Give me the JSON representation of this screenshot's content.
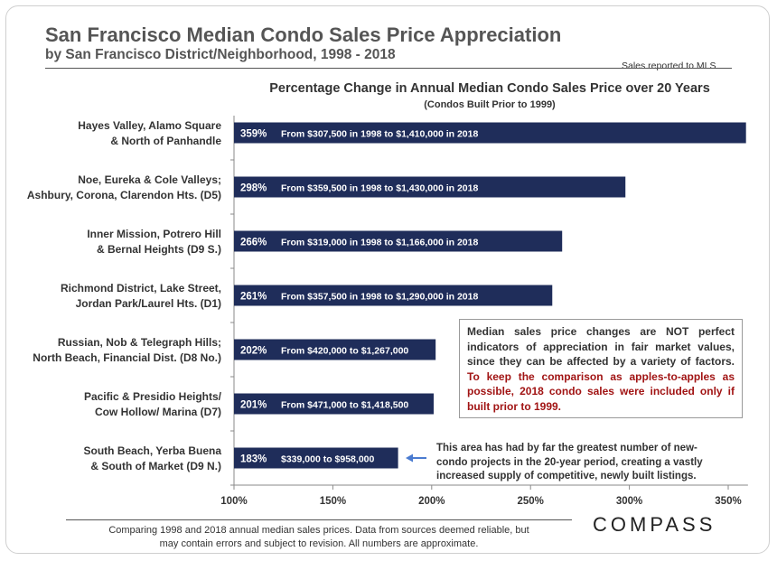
{
  "header": {
    "title": "San Francisco Median Condo Sales Price Appreciation",
    "subtitle": "by San Francisco District/Neighborhood,  1998 - 2018",
    "source_note": "Sales reported to MLS"
  },
  "chart_data": {
    "type": "bar",
    "orientation": "horizontal",
    "title": "Percentage Change in Annual Median Condo Sales Price over 20 Years",
    "subtitle": "(Condos Built Prior to 1999)",
    "categories": [
      [
        "Hayes Valley, Alamo Square",
        "& North of Panhandle"
      ],
      [
        "Noe, Eureka & Cole Valleys;",
        "Ashbury, Corona, Clarendon Hts. (D5)"
      ],
      [
        "Inner Mission, Potrero Hill",
        "& Bernal Heights (D9 S.)"
      ],
      [
        "Richmond District, Lake Street,",
        "Jordan Park/Laurel Hts. (D1)"
      ],
      [
        "Russian, Nob & Telegraph Hills;",
        "North Beach, Financial Dist. (D8 No.)"
      ],
      [
        "Pacific & Presidio Heights/",
        "Cow Hollow/ Marina (D7)"
      ],
      [
        "South Beach, Yerba Buena",
        "& South of Market (D9 N.)"
      ]
    ],
    "values": [
      359,
      298,
      266,
      261,
      202,
      201,
      183
    ],
    "value_labels": [
      "359%",
      "298%",
      "266%",
      "261%",
      "202%",
      "201%",
      "183%"
    ],
    "annotations": [
      "From $307,500 in 1998 to $1,410,000 in 2018",
      "From $359,500 in 1998 to $1,430,000 in 2018",
      "From $319,000 in 1998 to $1,166,000 in 2018",
      "From $357,500 in 1998 to $1,290,000 in 2018",
      "From $420,000 to $1,267,000",
      "From $471,000 to $1,418,500",
      "$339,000 to $958,000"
    ],
    "x_ticks": [
      100,
      150,
      200,
      250,
      300,
      350
    ],
    "x_tick_labels": [
      "100%",
      "150%",
      "200%",
      "250%",
      "300%",
      "350%"
    ],
    "xlim": [
      100,
      360
    ],
    "bar_color": "#1f2d5a",
    "grid": false
  },
  "note": {
    "plain": "Median sales price changes are NOT perfect indicators of appreciation in fair market values, since they can be affected by a variety of factors.",
    "emphasis": "To keep the comparison as apples-to-apples as possible, 2018  condo sales were included only if built prior to 1999."
  },
  "south_beach_note": "This area has had by far the greatest number of new-condo projects in the 20-year period, creating a vastly increased supply of competitive, newly built listings.",
  "footer": {
    "line1": "Comparing 1998 and 2018 annual median sales prices. Data from sources deemed reliable, but",
    "line2": "may contain errors and subject to revision. All numbers are approximate."
  },
  "logo": "COMPASS",
  "colors": {
    "arrow": "#4a7bd0",
    "note_emphasis": "#a11414"
  }
}
